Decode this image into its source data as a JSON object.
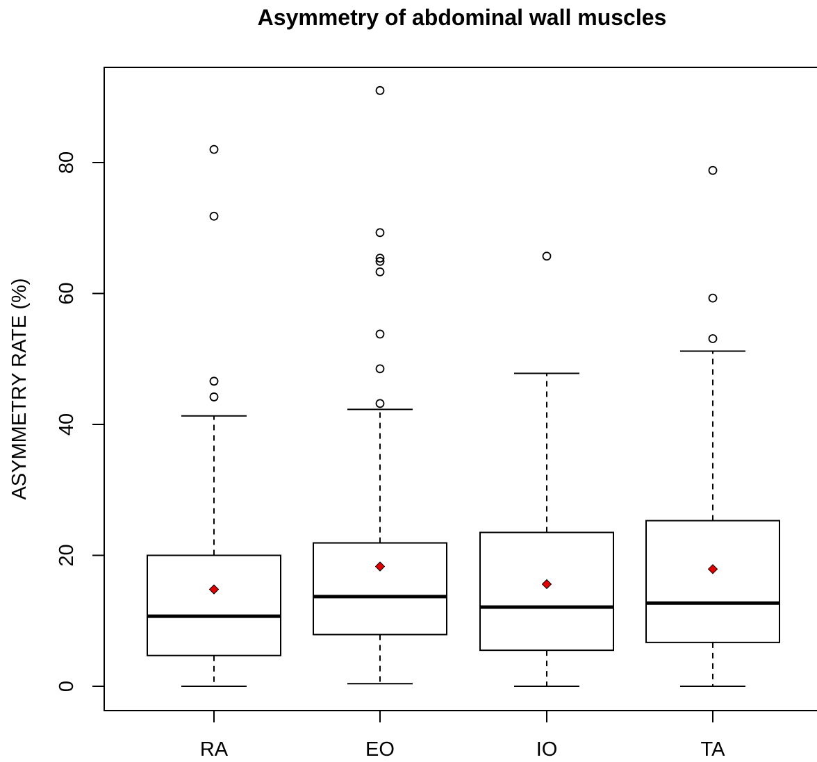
{
  "chart_data": {
    "type": "boxplot",
    "title": "Asymmetry of abdominal wall muscles",
    "xlabel": "",
    "ylabel": "ASYMMETRY RATE (%)",
    "ylim": [
      -3.8,
      95.5
    ],
    "yticks": [
      0,
      20,
      40,
      60,
      80
    ],
    "grid": false,
    "legend": "none",
    "colors": {
      "box": "#000000",
      "median": "#000000",
      "mean": "#e00000"
    },
    "categories": [
      "RA",
      "EO",
      "IO",
      "TA"
    ],
    "boxes": [
      {
        "name": "RA",
        "whisker_low": 0.0,
        "q1": 4.7,
        "median": 10.7,
        "q3": 20.0,
        "whisker_high": 41.3,
        "mean": 14.8,
        "outliers": [
          44.2,
          46.6,
          71.8,
          82.0
        ]
      },
      {
        "name": "EO",
        "whisker_low": 0.4,
        "q1": 7.9,
        "median": 13.7,
        "q3": 21.9,
        "whisker_high": 42.3,
        "mean": 18.3,
        "outliers": [
          43.2,
          48.5,
          53.8,
          63.3,
          64.9,
          65.4,
          69.3,
          91.0
        ]
      },
      {
        "name": "IO",
        "whisker_low": 0.0,
        "q1": 5.5,
        "median": 12.1,
        "q3": 23.5,
        "whisker_high": 47.8,
        "mean": 15.6,
        "outliers": [
          65.7
        ]
      },
      {
        "name": "TA",
        "whisker_low": 0.0,
        "q1": 6.7,
        "median": 12.7,
        "q3": 25.3,
        "whisker_high": 51.2,
        "mean": 17.9,
        "outliers": [
          53.1,
          59.3,
          78.8
        ]
      }
    ]
  }
}
